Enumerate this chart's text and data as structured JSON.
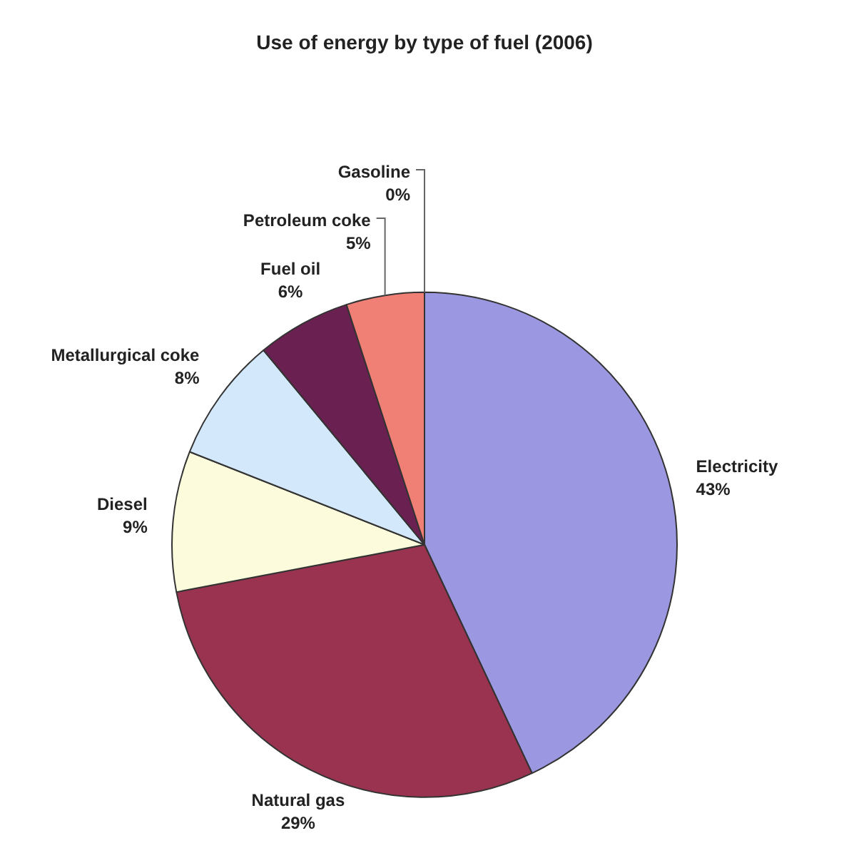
{
  "chart_data": {
    "type": "pie",
    "title": "Use of energy by type of fuel (2006)",
    "categories": [
      "Electricity",
      "Natural gas",
      "Diesel",
      "Metallurgical coke",
      "Fuel oil",
      "Petroleum coke",
      "Gasoline"
    ],
    "values": [
      43,
      29,
      9,
      8,
      6,
      5,
      0
    ],
    "colors": [
      "#9b97e0",
      "#99334f",
      "#fcfcdc",
      "#d4e8fc",
      "#6a2050",
      "#f07f76",
      "#d8d8d8"
    ],
    "value_labels": [
      "43%",
      "29%",
      "9%",
      "8%",
      "6%",
      "5%",
      "0%"
    ],
    "legend": false
  }
}
